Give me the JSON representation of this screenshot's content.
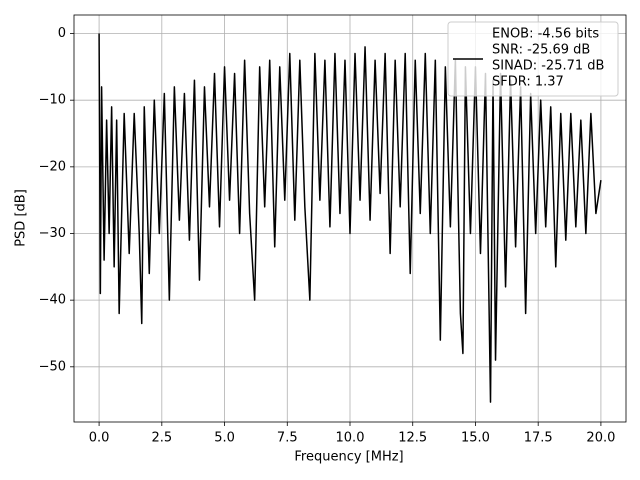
{
  "chart_data": {
    "type": "line",
    "xlabel": "Frequency [MHz]",
    "ylabel": "PSD [dB]",
    "x": [
      0,
      0.05,
      0.1,
      0.2,
      0.3,
      0.4,
      0.5,
      0.6,
      0.7,
      0.8,
      1.0,
      1.2,
      1.4,
      1.6,
      1.7,
      1.8,
      2.0,
      2.2,
      2.4,
      2.6,
      2.8,
      3.0,
      3.2,
      3.4,
      3.6,
      3.8,
      4.0,
      4.2,
      4.4,
      4.6,
      4.8,
      5.0,
      5.2,
      5.4,
      5.6,
      5.8,
      6.0,
      6.2,
      6.4,
      6.6,
      6.8,
      7.0,
      7.2,
      7.4,
      7.6,
      7.8,
      8.0,
      8.2,
      8.4,
      8.6,
      8.8,
      9.0,
      9.2,
      9.4,
      9.6,
      9.8,
      10.0,
      10.2,
      10.4,
      10.6,
      10.8,
      11.0,
      11.2,
      11.4,
      11.6,
      11.8,
      12.0,
      12.2,
      12.4,
      12.6,
      12.8,
      13.0,
      13.2,
      13.4,
      13.6,
      13.8,
      14.0,
      14.2,
      14.4,
      14.5,
      14.6,
      14.8,
      15.0,
      15.2,
      15.4,
      15.6,
      15.7,
      15.8,
      16.0,
      16.2,
      16.4,
      16.6,
      16.8,
      17.0,
      17.2,
      17.4,
      17.6,
      17.8,
      18.0,
      18.2,
      18.4,
      18.6,
      18.8,
      19.0,
      19.2,
      19.4,
      19.6,
      19.8,
      20.0
    ],
    "series": [
      {
        "name": [
          "ENOB: -4.56 bits",
          "SNR: -25.69 dB",
          "SINAD: -25.71 dB",
          "SFDR: 1.37"
        ],
        "color": "#000000",
        "values": [
          0,
          -39,
          -8,
          -34,
          -13,
          -30,
          -11,
          -35,
          -13,
          -42,
          -12,
          -33,
          -12,
          -30,
          -43.5,
          -11,
          -36,
          -10,
          -30,
          -9,
          -40,
          -8,
          -28,
          -9,
          -31,
          -7,
          -37,
          -8,
          -26,
          -6,
          -29,
          -5,
          -25,
          -6,
          -30,
          -4,
          -27,
          -40,
          -5,
          -26,
          -4,
          -32,
          -5,
          -25,
          -3,
          -28,
          -4,
          -26,
          -40,
          -3,
          -25,
          -4,
          -29,
          -3,
          -27,
          -4,
          -30,
          -3,
          -25,
          -2,
          -28,
          -4,
          -24,
          -3,
          -33,
          -4,
          -26,
          -3,
          -36,
          -4,
          -27,
          -3,
          -30,
          -4,
          -46,
          -5,
          -29,
          -4,
          -42,
          -48,
          -5,
          -30,
          -5,
          -33,
          -6,
          -55.3,
          -7,
          -49,
          -6,
          -38,
          -7,
          -32,
          -8,
          -42,
          -9,
          -30,
          -10,
          -29,
          -11,
          -35,
          -12,
          -31,
          -12,
          -29,
          -13,
          -30,
          -12,
          -27,
          -22
        ]
      }
    ],
    "xlim": [
      -1,
      21
    ],
    "xticks": [
      {
        "value": 0,
        "label": "0.0"
      },
      2.5,
      {
        "value": 5,
        "label": "5.0"
      },
      7.5,
      {
        "value": 10,
        "label": "10.0"
      },
      12.5,
      {
        "value": 15,
        "label": "15.0"
      },
      17.5,
      {
        "value": 20,
        "label": "20.0"
      }
    ],
    "ylim": [
      -58.28,
      2.78
    ],
    "yticks": [
      {
        "value": -50,
        "label": "−50"
      },
      {
        "value": -40,
        "label": "−40"
      },
      {
        "value": -30,
        "label": "−30"
      },
      {
        "value": -20,
        "label": "−20"
      },
      {
        "value": -10,
        "label": "−10"
      },
      0
    ],
    "grid": true,
    "legend": "upper right"
  }
}
